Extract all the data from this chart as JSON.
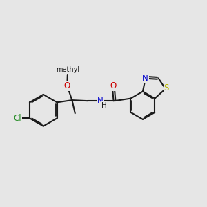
{
  "bg_color": "#e6e6e6",
  "bond_color": "#1a1a1a",
  "bond_width": 1.5,
  "atom_colors": {
    "Cl": "#228B22",
    "O": "#cc0000",
    "N": "#0000cc",
    "S": "#b8b800",
    "C": "#1a1a1a"
  },
  "font_size": 8.5,
  "fig_size": [
    3.0,
    3.0
  ],
  "dpi": 100,
  "xlim": [
    -2.6,
    2.8
  ],
  "ylim": [
    -1.2,
    1.2
  ]
}
